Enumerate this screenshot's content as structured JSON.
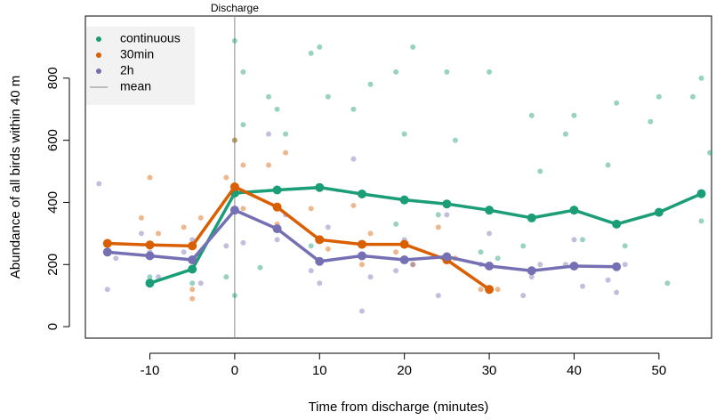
{
  "chart_data": {
    "type": "line",
    "x_label": "Time from discharge (minutes)",
    "y_label": "Abundance of all birds within 40 m",
    "xlim": [
      -17.6,
      56.2
    ],
    "ylim": [
      -37,
      1000
    ],
    "xticks": [
      -10,
      0,
      10,
      20,
      30,
      40,
      50
    ],
    "yticks": [
      0,
      200,
      400,
      600,
      800
    ],
    "legend_position": "top-left",
    "annotation": {
      "text": "Discharge",
      "x": 0,
      "color": "#888888"
    },
    "mean_label": "mean",
    "series": [
      {
        "name": "continuous",
        "color": "#1b9e77",
        "x": [
          -10,
          -5,
          0,
          5,
          10,
          15,
          20,
          25,
          30,
          35,
          40,
          45,
          50,
          55
        ],
        "values": [
          140,
          185,
          430,
          440,
          448,
          427,
          408,
          395,
          375,
          350,
          375,
          330,
          368,
          428
        ],
        "points_x": [
          0,
          1,
          0,
          -1,
          0,
          1,
          4,
          5,
          6,
          3,
          9,
          10,
          11,
          9,
          14,
          16,
          15,
          19,
          20,
          21,
          19,
          25,
          26,
          24,
          30,
          31,
          29,
          35,
          36,
          34,
          40,
          39,
          41,
          45,
          44,
          46,
          50,
          49,
          51,
          55,
          54,
          56,
          55,
          -5,
          -10
        ],
        "points_y": [
          920,
          820,
          600,
          160,
          100,
          650,
          740,
          700,
          620,
          190,
          880,
          900,
          740,
          260,
          700,
          780,
          260,
          820,
          620,
          900,
          330,
          820,
          600,
          360,
          820,
          220,
          240,
          680,
          500,
          260,
          680,
          620,
          280,
          720,
          520,
          260,
          740,
          660,
          140,
          800,
          740,
          560,
          340,
          140,
          160
        ]
      },
      {
        "name": "30min",
        "color": "#d95f02",
        "x": [
          -15,
          -10,
          -5,
          0,
          5,
          10,
          15,
          20,
          25,
          30
        ],
        "values": [
          268,
          263,
          260,
          450,
          385,
          280,
          265,
          265,
          215,
          120
        ],
        "points_x": [
          -15,
          -10,
          -11,
          -9,
          -6,
          -4,
          -5,
          -5,
          0,
          1,
          -1,
          1,
          4,
          6,
          5,
          9,
          11,
          14,
          16,
          15,
          19,
          21,
          24,
          26,
          30,
          29,
          31
        ],
        "points_y": [
          270,
          480,
          350,
          300,
          320,
          350,
          120,
          90,
          600,
          520,
          480,
          380,
          520,
          560,
          330,
          380,
          250,
          390,
          300,
          200,
          240,
          200,
          320,
          220,
          190,
          120,
          120
        ]
      },
      {
        "name": "2h",
        "color": "#7570b3",
        "x": [
          -15,
          -10,
          -5,
          0,
          5,
          10,
          15,
          20,
          25,
          30,
          35,
          40,
          45
        ],
        "values": [
          240,
          228,
          215,
          375,
          315,
          210,
          228,
          215,
          225,
          195,
          180,
          195,
          193
        ],
        "points_x": [
          -16,
          -15,
          -14,
          -11,
          -9,
          -10,
          -6,
          -4,
          -5,
          0,
          1,
          -1,
          4,
          6,
          5,
          10,
          11,
          9,
          14,
          16,
          15,
          20,
          21,
          19,
          25,
          24,
          30,
          29,
          35,
          34,
          36,
          40,
          41,
          39,
          45,
          44,
          46
        ],
        "points_y": [
          460,
          120,
          220,
          300,
          160,
          240,
          240,
          140,
          280,
          380,
          270,
          260,
          620,
          360,
          280,
          140,
          320,
          180,
          540,
          160,
          50,
          280,
          200,
          180,
          360,
          100,
          300,
          200,
          160,
          100,
          200,
          280,
          130,
          200,
          110,
          150,
          200
        ]
      }
    ]
  }
}
